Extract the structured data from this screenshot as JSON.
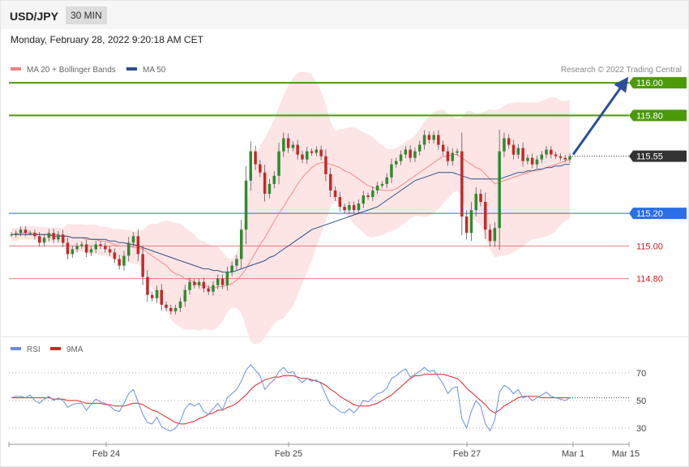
{
  "header": {
    "symbol": "USD/JPY",
    "timeframe": "30 MIN",
    "datetime": "Monday, February 28, 2022 9:20:18 AM CET"
  },
  "legend": {
    "ma20": "MA 20 + Bollinger Bands",
    "ma50": "MA 50",
    "research": "Research © 2022 Trading Central",
    "rsi": "RSI",
    "rsi_ma": "9MA"
  },
  "colors": {
    "ma20": "#f08080",
    "ma50": "#2c4f8c",
    "bands_fill": "#fde0e0",
    "candle_up": "#2e8b2e",
    "candle_down": "#c62828",
    "resistance": "#4a9a0a",
    "pivot": "#2a6ee8",
    "support": "#e06060",
    "arrow": "#2c4f9c",
    "rsi": "#6a8fd8",
    "rsi_ma": "#dd2222"
  },
  "chart_data": [
    {
      "type": "line",
      "name": "price",
      "ylim": [
        114.52,
        116.05
      ],
      "x_ticks": [
        "Feb 24",
        "Feb 25",
        "Feb 27",
        "Mar 1",
        "Mar 15"
      ],
      "levels": [
        {
          "value": 116.0,
          "label": "116.00",
          "kind": "resistance"
        },
        {
          "value": 115.8,
          "label": "115.80",
          "kind": "resistance"
        },
        {
          "value": 115.55,
          "label": "115.55",
          "kind": "last"
        },
        {
          "value": 115.2,
          "label": "115.20",
          "kind": "pivot"
        },
        {
          "value": 115.0,
          "label": "115.00",
          "kind": "support"
        },
        {
          "value": 114.8,
          "label": "114.80",
          "kind": "support"
        }
      ],
      "projection": {
        "from": 115.55,
        "to": 116.0
      },
      "series": [
        {
          "name": "Close",
          "values": [
            115.07,
            115.08,
            115.1,
            115.08,
            115.08,
            115.06,
            115.02,
            115.05,
            115.08,
            115.04,
            115.07,
            115.02,
            114.95,
            114.98,
            115.0,
            115.01,
            114.96,
            114.98,
            115.01,
            115.0,
            114.98,
            114.96,
            114.92,
            114.88,
            114.94,
            115.02,
            115.06,
            114.95,
            114.81,
            114.7,
            114.68,
            114.73,
            114.64,
            114.62,
            114.6,
            114.62,
            114.66,
            114.73,
            114.78,
            114.76,
            114.78,
            114.74,
            114.72,
            114.76,
            114.8,
            114.76,
            114.84,
            114.88,
            114.92,
            115.1,
            115.4,
            115.58,
            115.5,
            115.45,
            115.32,
            115.38,
            115.43,
            115.58,
            115.66,
            115.6,
            115.62,
            115.56,
            115.53,
            115.58,
            115.57,
            115.59,
            115.55,
            115.44,
            115.34,
            115.3,
            115.24,
            115.22,
            115.25,
            115.22,
            115.26,
            115.31,
            115.3,
            115.34,
            115.37,
            115.38,
            115.42,
            115.5,
            115.52,
            115.56,
            115.59,
            115.54,
            115.58,
            115.62,
            115.68,
            115.65,
            115.68,
            115.62,
            115.58,
            115.52,
            115.57,
            115.58,
            115.18,
            115.08,
            115.22,
            115.32,
            115.27,
            115.1,
            115.03,
            115.11,
            115.58,
            115.66,
            115.62,
            115.56,
            115.6,
            115.52,
            115.54,
            115.5,
            115.53,
            115.56,
            115.59,
            115.56,
            115.55,
            115.54,
            115.53,
            115.55
          ]
        },
        {
          "name": "MA 20",
          "values": [
            115.07,
            115.07,
            115.08,
            115.08,
            115.08,
            115.08,
            115.07,
            115.07,
            115.07,
            115.07,
            115.07,
            115.06,
            115.06,
            115.05,
            115.05,
            115.05,
            115.04,
            115.04,
            115.04,
            115.03,
            115.03,
            115.02,
            115.01,
            115.0,
            115.0,
            115.0,
            114.99,
            114.99,
            114.98,
            114.96,
            114.94,
            114.92,
            114.9,
            114.88,
            114.85,
            114.83,
            114.82,
            114.8,
            114.79,
            114.78,
            114.76,
            114.76,
            114.75,
            114.74,
            114.75,
            114.75,
            114.76,
            114.77,
            114.79,
            114.82,
            114.86,
            114.91,
            114.96,
            115.01,
            115.05,
            115.1,
            115.15,
            115.2,
            115.24,
            115.29,
            115.33,
            115.38,
            115.42,
            115.45,
            115.48,
            115.5,
            115.51,
            115.51,
            115.5,
            115.49,
            115.48,
            115.46,
            115.45,
            115.43,
            115.41,
            115.39,
            115.37,
            115.36,
            115.35,
            115.34,
            115.34,
            115.34,
            115.35,
            115.37,
            115.39,
            115.41,
            115.43,
            115.45,
            115.47,
            115.49,
            115.51,
            115.53,
            115.55,
            115.55,
            115.56,
            115.56,
            115.54,
            115.52,
            115.5,
            115.48,
            115.47,
            115.44,
            115.41,
            115.38,
            115.39,
            115.4,
            115.41,
            115.42,
            115.43,
            115.44,
            115.45,
            115.46,
            115.46,
            115.47,
            115.48,
            115.49,
            115.5,
            115.51,
            115.52,
            115.53
          ]
        },
        {
          "name": "MA 50",
          "values": [
            115.07,
            115.07,
            115.07,
            115.07,
            115.07,
            115.07,
            115.07,
            115.07,
            115.07,
            115.06,
            115.06,
            115.06,
            115.06,
            115.05,
            115.05,
            115.05,
            115.05,
            115.04,
            115.04,
            115.04,
            115.04,
            115.03,
            115.03,
            115.02,
            115.02,
            115.01,
            115.01,
            115.0,
            114.99,
            114.98,
            114.97,
            114.96,
            114.95,
            114.94,
            114.93,
            114.92,
            114.91,
            114.9,
            114.89,
            114.88,
            114.87,
            114.86,
            114.86,
            114.85,
            114.85,
            114.84,
            114.84,
            114.84,
            114.85,
            114.86,
            114.87,
            114.88,
            114.89,
            114.9,
            114.91,
            114.93,
            114.94,
            114.96,
            114.98,
            115.0,
            115.02,
            115.04,
            115.06,
            115.08,
            115.1,
            115.11,
            115.12,
            115.13,
            115.14,
            115.15,
            115.16,
            115.17,
            115.18,
            115.19,
            115.2,
            115.21,
            115.22,
            115.23,
            115.24,
            115.26,
            115.28,
            115.3,
            115.32,
            115.34,
            115.36,
            115.38,
            115.4,
            115.41,
            115.42,
            115.43,
            115.44,
            115.45,
            115.45,
            115.45,
            115.45,
            115.44,
            115.43,
            115.42,
            115.41,
            115.41,
            115.41,
            115.41,
            115.41,
            115.41,
            115.41,
            115.42,
            115.43,
            115.44,
            115.45,
            115.45,
            115.46,
            115.46,
            115.47,
            115.47,
            115.48,
            115.48,
            115.49,
            115.49,
            115.5,
            115.5
          ]
        }
      ]
    },
    {
      "type": "line",
      "name": "RSI",
      "ylim": [
        20,
        80
      ],
      "y_ticks": [
        30,
        50,
        70
      ],
      "series": [
        {
          "name": "RSI",
          "values": [
            52,
            53,
            53,
            52,
            54,
            50,
            48,
            51,
            53,
            50,
            52,
            50,
            45,
            47,
            48,
            48,
            43,
            47,
            51,
            49,
            48,
            46,
            43,
            42,
            48,
            55,
            58,
            49,
            40,
            34,
            33,
            38,
            31,
            29,
            28,
            30,
            35,
            44,
            48,
            46,
            48,
            42,
            40,
            44,
            48,
            43,
            52,
            55,
            58,
            64,
            72,
            76,
            72,
            68,
            58,
            62,
            65,
            71,
            74,
            70,
            71,
            66,
            63,
            66,
            64,
            65,
            62,
            54,
            47,
            45,
            42,
            41,
            44,
            41,
            45,
            50,
            49,
            52,
            55,
            56,
            59,
            66,
            68,
            71,
            73,
            67,
            69,
            71,
            74,
            71,
            72,
            67,
            62,
            55,
            59,
            60,
            37,
            30,
            42,
            50,
            46,
            33,
            28,
            36,
            56,
            61,
            59,
            55,
            58,
            52,
            53,
            50,
            52,
            54,
            56,
            53,
            52,
            51,
            50,
            52
          ]
        },
        {
          "name": "9MA",
          "values": [
            52,
            52,
            52,
            52,
            52,
            52,
            52,
            52,
            52,
            51,
            51,
            51,
            50,
            50,
            50,
            49,
            48,
            48,
            48,
            48,
            47,
            47,
            46,
            46,
            46,
            47,
            48,
            48,
            47,
            45,
            43,
            42,
            40,
            38,
            36,
            34,
            33,
            33,
            34,
            35,
            37,
            38,
            40,
            41,
            43,
            43,
            45,
            46,
            48,
            51,
            54,
            58,
            61,
            63,
            65,
            66,
            67,
            67,
            68,
            68,
            68,
            67,
            66,
            66,
            65,
            64,
            63,
            61,
            58,
            56,
            53,
            51,
            49,
            47,
            46,
            46,
            46,
            47,
            48,
            50,
            52,
            54,
            57,
            60,
            63,
            66,
            68,
            68,
            69,
            69,
            69,
            69,
            69,
            68,
            67,
            66,
            63,
            59,
            56,
            53,
            50,
            47,
            43,
            41,
            43,
            46,
            48,
            50,
            52,
            53,
            53,
            53,
            53,
            52,
            52,
            52,
            52,
            52,
            52,
            52
          ]
        }
      ]
    }
  ]
}
